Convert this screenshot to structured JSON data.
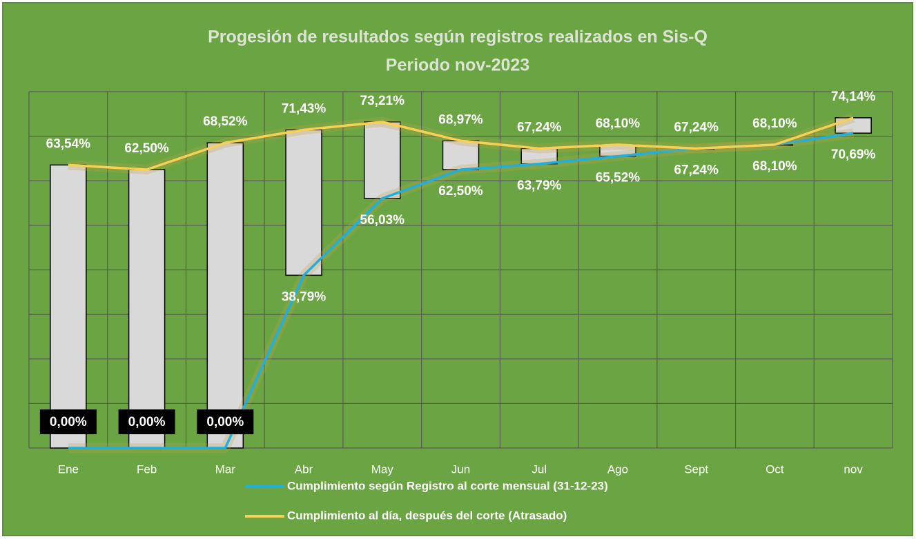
{
  "chart_data": {
    "type": "line",
    "title": "Progesión de resultados según registros realizados en Sis-Q",
    "subtitle": "Periodo  nov-2023",
    "categories": [
      "Ene",
      "Feb",
      "Mar",
      "Abr",
      "May",
      "Jun",
      "Jul",
      "Ago",
      "Sept",
      "Oct",
      "nov"
    ],
    "ylim": [
      0,
      80
    ],
    "yticks": [
      0,
      10,
      20,
      30,
      40,
      50,
      60,
      70,
      80
    ],
    "grid": true,
    "up_down_bars": true,
    "series": [
      {
        "name": "Cumplimiento según Registro al corte  mensual (31-12-23)",
        "color": "#1cb0e3",
        "values": [
          0,
          0,
          0,
          38.79,
          56.03,
          62.5,
          63.79,
          65.52,
          67.24,
          68.1,
          70.69
        ],
        "value_labels": [
          "0,00%",
          "0,00%",
          "0,00%",
          "38,79%",
          "56,03%",
          "62,50%",
          "63,79%",
          "65,52%",
          "67,24%",
          "68,10%",
          "70,69%"
        ]
      },
      {
        "name": "Cumplimiento al día, después del corte (Atrasado)",
        "color": "#f7d155",
        "values": [
          63.54,
          62.5,
          68.52,
          71.43,
          73.21,
          68.97,
          67.24,
          68.1,
          67.24,
          68.1,
          74.14
        ],
        "value_labels": [
          "63,54%",
          "62,50%",
          "68,52%",
          "71,43%",
          "73,21%",
          "68,97%",
          "67,24%",
          "68,10%",
          "67,24%",
          "68,10%",
          "74,14%"
        ]
      }
    ]
  }
}
